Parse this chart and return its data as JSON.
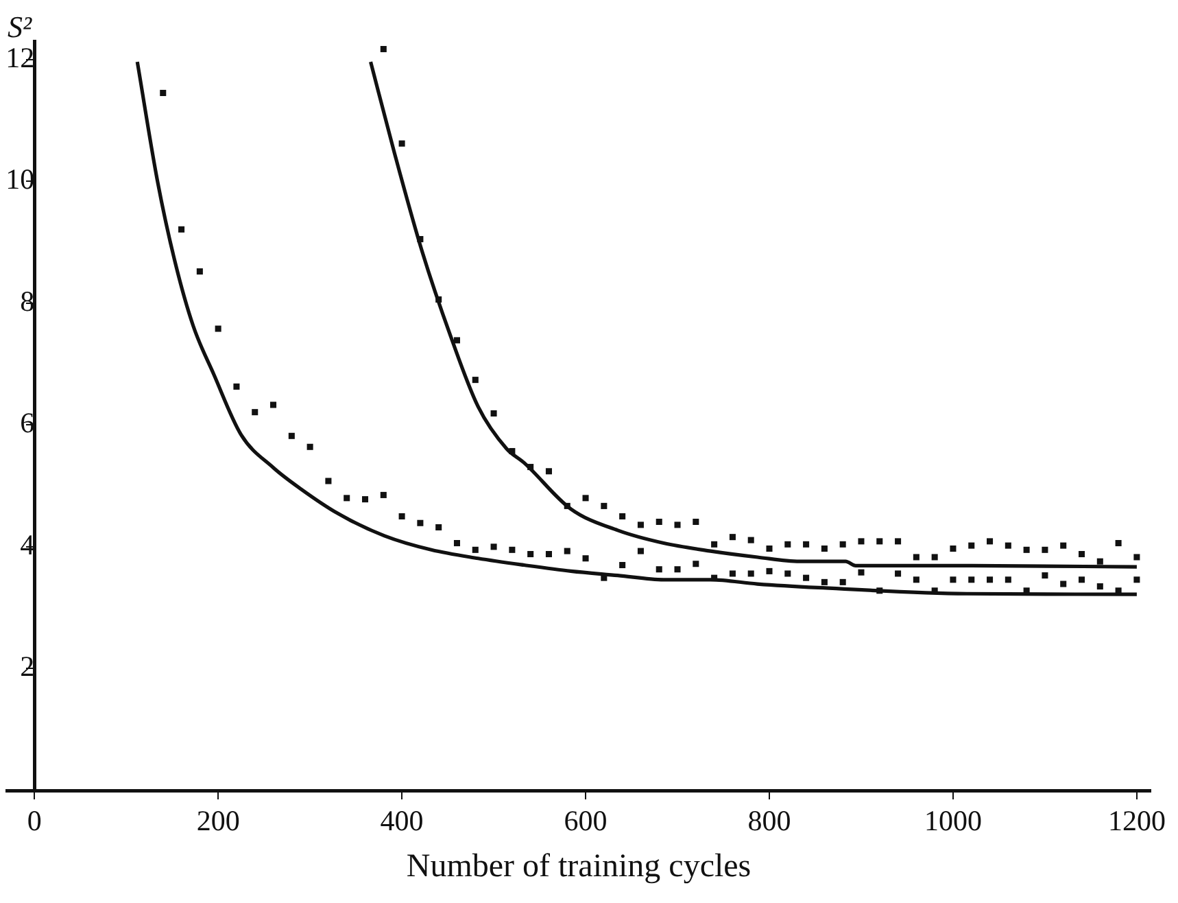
{
  "chart_data": {
    "type": "scatter",
    "xlabel": "Number of training cycles",
    "ylabel": "S²",
    "xlim": [
      -30,
      1215
    ],
    "ylim": [
      0,
      12.3
    ],
    "xticks": [
      0,
      200,
      400,
      600,
      800,
      1000,
      1200
    ],
    "yticks": [
      2,
      4,
      6,
      8,
      10,
      12
    ],
    "grid": false,
    "legend": false,
    "series": [
      {
        "marker": "square",
        "color": "#111111",
        "x": [
          140,
          160,
          180,
          200,
          220,
          240,
          260,
          280,
          300,
          320,
          340,
          360,
          380,
          400,
          420,
          440,
          460,
          480,
          500,
          520,
          540,
          560,
          580,
          600,
          620,
          640,
          660,
          680,
          700,
          720,
          740,
          760,
          780,
          800,
          820,
          840,
          860,
          880,
          900,
          920,
          940,
          960,
          980,
          1000,
          1020,
          1040,
          1060,
          1080,
          1100,
          1120,
          1140,
          1160,
          1180,
          1200
        ],
        "values": [
          11.45,
          9.21,
          8.52,
          7.58,
          6.63,
          6.21,
          6.33,
          5.82,
          5.64,
          5.08,
          4.8,
          4.78,
          4.85,
          4.5,
          4.39,
          4.32,
          4.06,
          3.95,
          4.0,
          3.95,
          3.88,
          3.88,
          3.93,
          3.81,
          3.49,
          3.7,
          3.93,
          3.63,
          3.63,
          3.72,
          3.49,
          3.56,
          3.56,
          3.6,
          3.56,
          3.49,
          3.42,
          3.42,
          3.58,
          3.28,
          3.56,
          3.46,
          3.28,
          3.46,
          3.46,
          3.46,
          3.46,
          3.28,
          3.53,
          3.39,
          3.46,
          3.35,
          3.28,
          3.46
        ]
      },
      {
        "marker": "square",
        "color": "#111111",
        "x": [
          380,
          400,
          420,
          440,
          460,
          480,
          500,
          520,
          540,
          560,
          580,
          600,
          620,
          640,
          660,
          680,
          700,
          720,
          740,
          760,
          780,
          800,
          820,
          840,
          860,
          880,
          900,
          920,
          940,
          960,
          980,
          1000,
          1020,
          1040,
          1060,
          1080,
          1100,
          1120,
          1140,
          1160,
          1180,
          1200
        ],
        "values": [
          12.17,
          10.62,
          9.05,
          8.06,
          7.39,
          6.74,
          6.19,
          5.57,
          5.31,
          5.24,
          4.67,
          4.8,
          4.67,
          4.5,
          4.36,
          4.41,
          4.36,
          4.41,
          4.04,
          4.16,
          4.11,
          3.97,
          4.04,
          4.04,
          3.97,
          4.04,
          4.09,
          4.09,
          4.09,
          3.83,
          3.83,
          3.97,
          4.02,
          4.09,
          4.02,
          3.95,
          3.95,
          4.02,
          3.88,
          3.76,
          4.06,
          3.83
        ]
      },
      {
        "type": "line",
        "marker": "none",
        "color": "#111111",
        "x": [
          112,
          134,
          153,
          173,
          195,
          225,
          260,
          290,
          330,
          381,
          432,
          483,
          533,
          584,
          635,
          685,
          736,
          787,
          853,
          1015,
          1200
        ],
        "values": [
          11.96,
          10.0,
          8.68,
          7.62,
          6.84,
          5.84,
          5.3,
          4.95,
          4.55,
          4.18,
          3.95,
          3.81,
          3.7,
          3.6,
          3.53,
          3.46,
          3.46,
          3.39,
          3.33,
          3.23,
          3.22
        ]
      },
      {
        "type": "line",
        "marker": "none",
        "color": "#111111",
        "x": [
          366,
          392,
          422,
          453,
          483,
          514,
          533,
          584,
          635,
          685,
          736,
          787,
          833,
          883,
          894,
          1015,
          1200
        ],
        "values": [
          11.96,
          10.46,
          8.85,
          7.46,
          6.3,
          5.61,
          5.38,
          4.62,
          4.27,
          4.06,
          3.93,
          3.83,
          3.76,
          3.76,
          3.69,
          3.69,
          3.67
        ]
      }
    ]
  }
}
